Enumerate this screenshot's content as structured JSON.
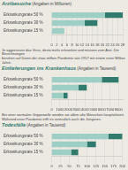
{
  "chart_data": [
    {
      "type": "bar",
      "orientation": "horizontal",
      "stacked": true,
      "grid": true,
      "title": "Arztbesuche",
      "subtitle": " (Angaben in Millionen)",
      "categories": [
        "Erkrankungsrate 50 %",
        "Erkrankungsrate 30 %",
        "Erkrankungsrate 15 %"
      ],
      "series": [
        {
          "color": "#9ecfc4",
          "values": [
            21,
            13,
            5
          ]
        },
        {
          "color": "#317a6e",
          "values": [
            7,
            5,
            0
          ]
        }
      ],
      "xlim": [
        0,
        28
      ],
      "xticks": [
        0,
        2,
        4,
        6,
        8,
        10,
        12,
        14,
        16,
        18,
        20,
        22,
        24,
        26,
        28
      ],
      "annotations": [
        "Je aggressiver das Virus, desto mehr erkranken und müssen zum Arzt. Die Berechnungen\nberuhen auf Daten der etwa million Pandemie von 1957 mit einem einer Million Jahre."
      ]
    },
    {
      "type": "bar",
      "orientation": "horizontal",
      "stacked": true,
      "grid": true,
      "title": "Einlieferungen ins Krankenhaus",
      "subtitle": " (Angaben in Tausend)",
      "categories": [
        "Erkrankungsrate 50 %",
        "Erkrankungsrate 30 %",
        "Erkrankungsrate 15 %"
      ],
      "series": [
        {
          "color": "#9ecfc4",
          "values": [
            6000,
            3200,
            1400
          ]
        },
        {
          "color": "#317a6e",
          "values": [
            2000,
            1000,
            500
          ]
        }
      ],
      "xlim": [
        0,
        8500
      ],
      "xticks": [
        0,
        1000,
        2000,
        3000,
        4000,
        5000,
        6000,
        7000,
        8000
      ],
      "annotations": [
        "Bei einer normalen Grippewelle werden vor allem alte Menschen hospitalisiert.\nWährend einer Pandemie trifft es vermutlich auch die Jüngeren."
      ]
    },
    {
      "type": "bar",
      "orientation": "horizontal",
      "stacked": true,
      "grid": true,
      "title": "Todesfälle",
      "subtitle": " (Angaben in Tausend)",
      "categories": [
        "Erkrankungsrate 50 %",
        "Erkrankungsrate 30 %",
        "Erkrankungsrate 15 %"
      ],
      "series": [
        {
          "color": "#9ecfc4",
          "values": [
            160,
            100,
            55
          ]
        },
        {
          "color": "#317a6e",
          "values": [
            40,
            25,
            20
          ]
        }
      ],
      "xlim": [
        0,
        200
      ],
      "xticks": [
        0,
        25,
        50,
        75,
        100,
        125,
        150,
        175,
        200
      ]
    }
  ]
}
